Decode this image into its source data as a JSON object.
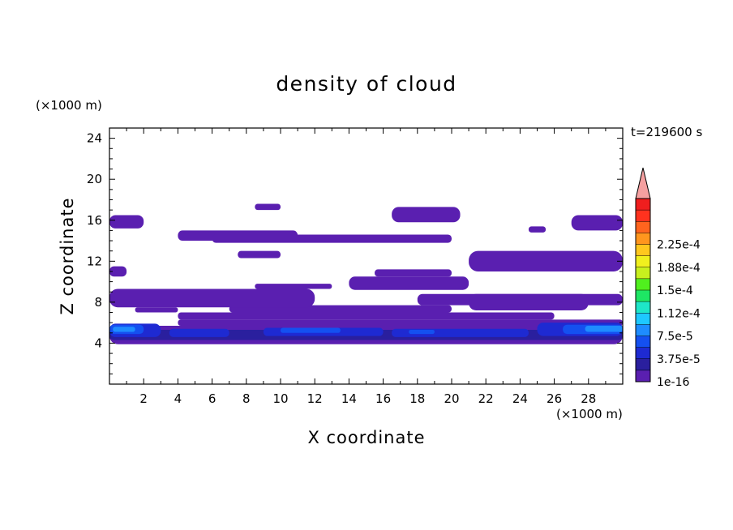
{
  "chart_data": {
    "type": "heatmap",
    "title": "density of cloud",
    "xlabel": "X coordinate",
    "ylabel": "Z coordinate",
    "x_unit": "(×1000 m)",
    "y_unit": "(×1000 m)",
    "time_label": "t=219600 s",
    "xlim": [
      0,
      30
    ],
    "ylim": [
      0,
      25
    ],
    "x_ticks": [
      2,
      4,
      6,
      8,
      10,
      12,
      14,
      16,
      18,
      20,
      22,
      24,
      26,
      28
    ],
    "y_ticks": [
      4,
      8,
      12,
      16,
      20,
      24
    ],
    "colorbar": {
      "labels": [
        "1e-16",
        "3.75e-5",
        "7.5e-5",
        "1.12e-4",
        "1.5e-4",
        "1.88e-4",
        "2.25e-4"
      ],
      "colors": [
        "#5a1fb0",
        "#2a1f9e",
        "#1e2ad2",
        "#1450f0",
        "#1e8cff",
        "#1ec8ff",
        "#1ee6c8",
        "#1ee664",
        "#50f01e",
        "#c8f01e",
        "#f0f01e",
        "#ffc81e",
        "#ff961e",
        "#ff641e",
        "#ff321e",
        "#f01e1e"
      ],
      "extend_color": "#f5a0a0"
    },
    "regions": [
      {
        "level": 0,
        "x": [
          0,
          30
        ],
        "z": [
          3.9,
          5.7
        ]
      },
      {
        "level": 1,
        "x": [
          0,
          30
        ],
        "z": [
          4.3,
          5.3
        ]
      },
      {
        "level": 0,
        "x": [
          4,
          30
        ],
        "z": [
          5.7,
          6.3
        ]
      },
      {
        "level": 0,
        "x": [
          4,
          26
        ],
        "z": [
          6.3,
          7.0
        ]
      },
      {
        "level": 0,
        "x": [
          7,
          20
        ],
        "z": [
          7.0,
          7.7
        ]
      },
      {
        "level": 0,
        "x": [
          0,
          12
        ],
        "z": [
          7.5,
          9.3
        ]
      },
      {
        "level": 0,
        "x": [
          1.5,
          4
        ],
        "z": [
          7.0,
          7.5
        ]
      },
      {
        "level": 0,
        "x": [
          18,
          30
        ],
        "z": [
          7.7,
          8.8
        ]
      },
      {
        "level": 0,
        "x": [
          8.5,
          13
        ],
        "z": [
          9.3,
          9.8
        ]
      },
      {
        "level": 0,
        "x": [
          14,
          21
        ],
        "z": [
          9.2,
          10.5
        ]
      },
      {
        "level": 0,
        "x": [
          15.5,
          20
        ],
        "z": [
          10.5,
          11.2
        ]
      },
      {
        "level": 0,
        "x": [
          21,
          28
        ],
        "z": [
          7.2,
          8.8
        ]
      },
      {
        "level": 0,
        "x": [
          0,
          1
        ],
        "z": [
          10.5,
          11.5
        ]
      },
      {
        "level": 0,
        "x": [
          21,
          30
        ],
        "z": [
          11.0,
          13.0
        ]
      },
      {
        "level": 0,
        "x": [
          7.5,
          10
        ],
        "z": [
          12.3,
          13.0
        ]
      },
      {
        "level": 0,
        "x": [
          4,
          11
        ],
        "z": [
          14.0,
          15.0
        ]
      },
      {
        "level": 0,
        "x": [
          6,
          20
        ],
        "z": [
          13.8,
          14.6
        ]
      },
      {
        "level": 0,
        "x": [
          0,
          2
        ],
        "z": [
          15.2,
          16.5
        ]
      },
      {
        "level": 0,
        "x": [
          16.5,
          20.5
        ],
        "z": [
          15.8,
          17.3
        ]
      },
      {
        "level": 0,
        "x": [
          24.5,
          25.5
        ],
        "z": [
          14.8,
          15.4
        ]
      },
      {
        "level": 0,
        "x": [
          27,
          30
        ],
        "z": [
          15.0,
          16.5
        ]
      },
      {
        "level": 0,
        "x": [
          8.5,
          10
        ],
        "z": [
          17.0,
          17.6
        ]
      },
      {
        "level": 2,
        "x": [
          0,
          3
        ],
        "z": [
          4.6,
          5.9
        ]
      },
      {
        "level": 3,
        "x": [
          0,
          2
        ],
        "z": [
          4.9,
          5.8
        ]
      },
      {
        "level": 4,
        "x": [
          0.2,
          1.5
        ],
        "z": [
          5.1,
          5.6
        ]
      },
      {
        "level": 2,
        "x": [
          3.5,
          7
        ],
        "z": [
          4.6,
          5.4
        ]
      },
      {
        "level": 2,
        "x": [
          9,
          16
        ],
        "z": [
          4.7,
          5.5
        ]
      },
      {
        "level": 3,
        "x": [
          10,
          13.5
        ],
        "z": [
          5.0,
          5.5
        ]
      },
      {
        "level": 2,
        "x": [
          16.5,
          24.5
        ],
        "z": [
          4.6,
          5.4
        ]
      },
      {
        "level": 3,
        "x": [
          17.5,
          19
        ],
        "z": [
          4.9,
          5.3
        ]
      },
      {
        "level": 2,
        "x": [
          25,
          30
        ],
        "z": [
          4.7,
          6.0
        ]
      },
      {
        "level": 3,
        "x": [
          26.5,
          30
        ],
        "z": [
          4.9,
          5.8
        ]
      },
      {
        "level": 4,
        "x": [
          27.8,
          30
        ],
        "z": [
          5.1,
          5.7
        ]
      }
    ]
  }
}
